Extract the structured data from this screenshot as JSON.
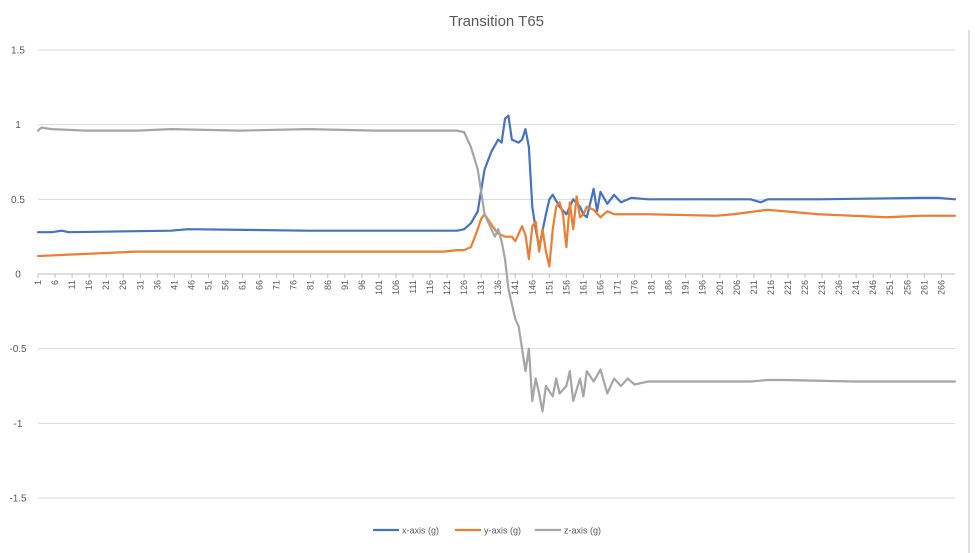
{
  "chart_data": {
    "type": "line",
    "title": "Transition T65",
    "xlabel": "",
    "ylabel": "",
    "ylim": [
      -1.5,
      1.5
    ],
    "yticks": [
      1.5,
      1,
      0.5,
      0,
      -0.5,
      -1,
      -1.5
    ],
    "x_start": 1,
    "x_end": 270,
    "x_tick_labels": [
      "1",
      "6",
      "11",
      "16",
      "21",
      "26",
      "31",
      "36",
      "41",
      "46",
      "51",
      "56",
      "61",
      "66",
      "71",
      "76",
      "81",
      "86",
      "91",
      "96",
      "101",
      "106",
      "111",
      "116",
      "121",
      "126",
      "131",
      "136",
      "141",
      "146",
      "151",
      "156",
      "161",
      "166",
      "171",
      "176",
      "181",
      "186",
      "191",
      "196",
      "201",
      "206",
      "211",
      "216",
      "221",
      "226",
      "231",
      "236",
      "241",
      "246",
      "251",
      "256",
      "261",
      "266"
    ],
    "grid": true,
    "legend_position": "bottom",
    "series": [
      {
        "name": "x-axis (g)",
        "color": "#4472C4",
        "points": [
          [
            1,
            0.28
          ],
          [
            5,
            0.28
          ],
          [
            8,
            0.29
          ],
          [
            10,
            0.28
          ],
          [
            40,
            0.29
          ],
          [
            45,
            0.3
          ],
          [
            80,
            0.29
          ],
          [
            120,
            0.29
          ],
          [
            124,
            0.29
          ],
          [
            126,
            0.3
          ],
          [
            128,
            0.34
          ],
          [
            130,
            0.42
          ],
          [
            132,
            0.7
          ],
          [
            134,
            0.82
          ],
          [
            136,
            0.9
          ],
          [
            137,
            0.88
          ],
          [
            138,
            1.04
          ],
          [
            139,
            1.06
          ],
          [
            140,
            0.9
          ],
          [
            142,
            0.88
          ],
          [
            143,
            0.9
          ],
          [
            144,
            0.97
          ],
          [
            145,
            0.85
          ],
          [
            146,
            0.45
          ],
          [
            147,
            0.3
          ],
          [
            148,
            0.18
          ],
          [
            150,
            0.4
          ],
          [
            151,
            0.5
          ],
          [
            152,
            0.53
          ],
          [
            154,
            0.45
          ],
          [
            156,
            0.4
          ],
          [
            158,
            0.5
          ],
          [
            160,
            0.45
          ],
          [
            161,
            0.4
          ],
          [
            162,
            0.38
          ],
          [
            164,
            0.57
          ],
          [
            165,
            0.42
          ],
          [
            166,
            0.55
          ],
          [
            168,
            0.47
          ],
          [
            170,
            0.53
          ],
          [
            172,
            0.48
          ],
          [
            175,
            0.51
          ],
          [
            180,
            0.5
          ],
          [
            200,
            0.5
          ],
          [
            210,
            0.5
          ],
          [
            213,
            0.48
          ],
          [
            215,
            0.5
          ],
          [
            230,
            0.5
          ],
          [
            260,
            0.51
          ],
          [
            265,
            0.51
          ],
          [
            270,
            0.5
          ]
        ]
      },
      {
        "name": "y-axis (g)",
        "color": "#ED7D31",
        "points": [
          [
            1,
            0.12
          ],
          [
            10,
            0.13
          ],
          [
            20,
            0.14
          ],
          [
            30,
            0.15
          ],
          [
            60,
            0.15
          ],
          [
            100,
            0.15
          ],
          [
            120,
            0.15
          ],
          [
            124,
            0.16
          ],
          [
            126,
            0.16
          ],
          [
            128,
            0.18
          ],
          [
            130,
            0.3
          ],
          [
            131,
            0.37
          ],
          [
            132,
            0.4
          ],
          [
            134,
            0.33
          ],
          [
            136,
            0.27
          ],
          [
            138,
            0.25
          ],
          [
            140,
            0.25
          ],
          [
            141,
            0.22
          ],
          [
            143,
            0.32
          ],
          [
            144,
            0.26
          ],
          [
            145,
            0.1
          ],
          [
            146,
            0.32
          ],
          [
            147,
            0.35
          ],
          [
            148,
            0.15
          ],
          [
            149,
            0.3
          ],
          [
            150,
            0.15
          ],
          [
            151,
            0.05
          ],
          [
            152,
            0.3
          ],
          [
            153,
            0.45
          ],
          [
            154,
            0.48
          ],
          [
            155,
            0.4
          ],
          [
            156,
            0.18
          ],
          [
            157,
            0.48
          ],
          [
            158,
            0.3
          ],
          [
            159,
            0.52
          ],
          [
            160,
            0.38
          ],
          [
            161,
            0.4
          ],
          [
            162,
            0.45
          ],
          [
            164,
            0.43
          ],
          [
            166,
            0.38
          ],
          [
            168,
            0.42
          ],
          [
            170,
            0.4
          ],
          [
            180,
            0.4
          ],
          [
            200,
            0.39
          ],
          [
            205,
            0.4
          ],
          [
            215,
            0.43
          ],
          [
            220,
            0.42
          ],
          [
            230,
            0.4
          ],
          [
            240,
            0.39
          ],
          [
            250,
            0.38
          ],
          [
            260,
            0.39
          ],
          [
            270,
            0.39
          ]
        ]
      },
      {
        "name": "z-axis (g)",
        "color": "#A5A5A5",
        "points": [
          [
            1,
            0.96
          ],
          [
            2,
            0.98
          ],
          [
            5,
            0.97
          ],
          [
            15,
            0.96
          ],
          [
            30,
            0.96
          ],
          [
            40,
            0.97
          ],
          [
            60,
            0.96
          ],
          [
            80,
            0.97
          ],
          [
            100,
            0.96
          ],
          [
            120,
            0.96
          ],
          [
            124,
            0.96
          ],
          [
            126,
            0.95
          ],
          [
            128,
            0.85
          ],
          [
            130,
            0.7
          ],
          [
            132,
            0.4
          ],
          [
            134,
            0.3
          ],
          [
            135,
            0.25
          ],
          [
            136,
            0.3
          ],
          [
            137,
            0.22
          ],
          [
            138,
            0.1
          ],
          [
            139,
            -0.1
          ],
          [
            140,
            -0.2
          ],
          [
            141,
            -0.3
          ],
          [
            142,
            -0.35
          ],
          [
            143,
            -0.5
          ],
          [
            144,
            -0.65
          ],
          [
            145,
            -0.5
          ],
          [
            146,
            -0.85
          ],
          [
            147,
            -0.7
          ],
          [
            148,
            -0.8
          ],
          [
            149,
            -0.92
          ],
          [
            150,
            -0.75
          ],
          [
            152,
            -0.82
          ],
          [
            153,
            -0.7
          ],
          [
            154,
            -0.8
          ],
          [
            156,
            -0.75
          ],
          [
            157,
            -0.65
          ],
          [
            158,
            -0.85
          ],
          [
            160,
            -0.7
          ],
          [
            161,
            -0.82
          ],
          [
            162,
            -0.65
          ],
          [
            164,
            -0.72
          ],
          [
            166,
            -0.64
          ],
          [
            168,
            -0.8
          ],
          [
            170,
            -0.7
          ],
          [
            172,
            -0.75
          ],
          [
            174,
            -0.7
          ],
          [
            176,
            -0.74
          ],
          [
            180,
            -0.72
          ],
          [
            200,
            -0.72
          ],
          [
            210,
            -0.72
          ],
          [
            215,
            -0.71
          ],
          [
            220,
            -0.71
          ],
          [
            240,
            -0.72
          ],
          [
            260,
            -0.72
          ],
          [
            270,
            -0.72
          ]
        ]
      }
    ]
  }
}
